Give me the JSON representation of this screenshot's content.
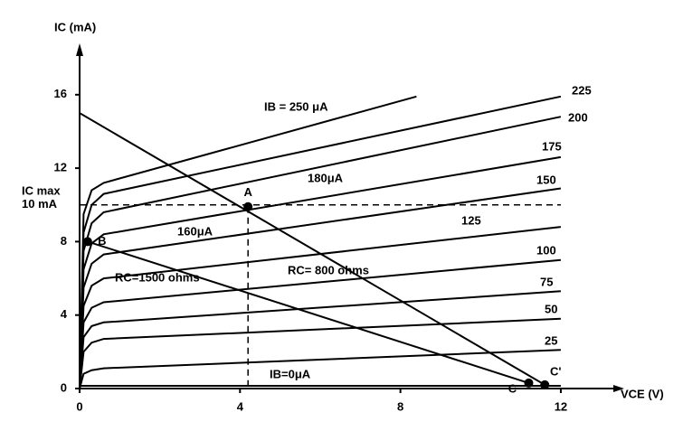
{
  "chart_data": {
    "type": "line",
    "y_label": "IC (mA)",
    "x_label": "VCE (V)",
    "xlim": [
      0,
      13.4
    ],
    "ylim": [
      0,
      18.5
    ],
    "xticks": [
      0,
      4,
      8,
      12
    ],
    "yticks": [
      0,
      4,
      8,
      12,
      16
    ],
    "color": "#000000",
    "series": [
      {
        "name": "IB=0μA",
        "x": [
          0,
          12
        ],
        "values": [
          0.15,
          0.15
        ]
      },
      {
        "name": "25",
        "x": [
          0,
          0.1,
          0.3,
          0.6,
          12
        ],
        "values": [
          0,
          0.8,
          1.0,
          1.1,
          2.1
        ]
      },
      {
        "name": "50",
        "x": [
          0,
          0.1,
          0.3,
          0.6,
          12
        ],
        "values": [
          0,
          2.0,
          2.5,
          2.7,
          3.8
        ]
      },
      {
        "name": "75",
        "x": [
          0,
          0.1,
          0.3,
          0.6,
          12
        ],
        "values": [
          0,
          2.8,
          3.4,
          3.6,
          5.3
        ]
      },
      {
        "name": "100",
        "x": [
          0,
          0.1,
          0.3,
          0.6,
          12
        ],
        "values": [
          0,
          3.6,
          4.4,
          4.7,
          7.0
        ]
      },
      {
        "name": "125",
        "x": [
          0,
          0.1,
          0.3,
          0.6,
          12
        ],
        "values": [
          0,
          4.5,
          5.6,
          6.0,
          8.8
        ]
      },
      {
        "name": "150",
        "x": [
          0,
          0.1,
          0.3,
          0.6,
          12
        ],
        "values": [
          0,
          5.5,
          6.8,
          7.3,
          10.9
        ]
      },
      {
        "name": "175",
        "x": [
          0,
          0.1,
          0.3,
          0.6,
          12
        ],
        "values": [
          0,
          6.5,
          7.9,
          8.4,
          12.6
        ]
      },
      {
        "name": "200",
        "x": [
          0,
          0.1,
          0.3,
          0.6,
          12
        ],
        "values": [
          0,
          7.5,
          9.0,
          9.6,
          14.8
        ]
      },
      {
        "name": "225",
        "x": [
          0,
          0.1,
          0.3,
          0.6,
          12
        ],
        "values": [
          0,
          8.5,
          10.0,
          10.6,
          15.9
        ]
      },
      {
        "name": "IB = 250 μA",
        "x": [
          0,
          0.1,
          0.3,
          0.6,
          8.4
        ],
        "values": [
          0,
          9.5,
          10.8,
          11.2,
          15.9
        ]
      }
    ],
    "load_lines": [
      {
        "label": "RC= 800 ohms",
        "x": [
          0,
          11.6
        ],
        "values": [
          15,
          0.2
        ]
      },
      {
        "label": "RC=1500 ohms",
        "x": [
          0.2,
          11.2
        ],
        "values": [
          8,
          0.3
        ]
      }
    ],
    "ic_max": {
      "value": 10,
      "label": "10 mA",
      "name": "IC max"
    },
    "points": [
      {
        "label": "A",
        "x": 4.2,
        "y": 9.9
      },
      {
        "label": "B",
        "x": 0.2,
        "y": 8
      },
      {
        "label": "C",
        "x": 11.2,
        "y": 0.3
      },
      {
        "label": "C'",
        "x": 11.6,
        "y": 0.2
      }
    ],
    "annotations": [
      "180μA",
      "160μA"
    ]
  }
}
